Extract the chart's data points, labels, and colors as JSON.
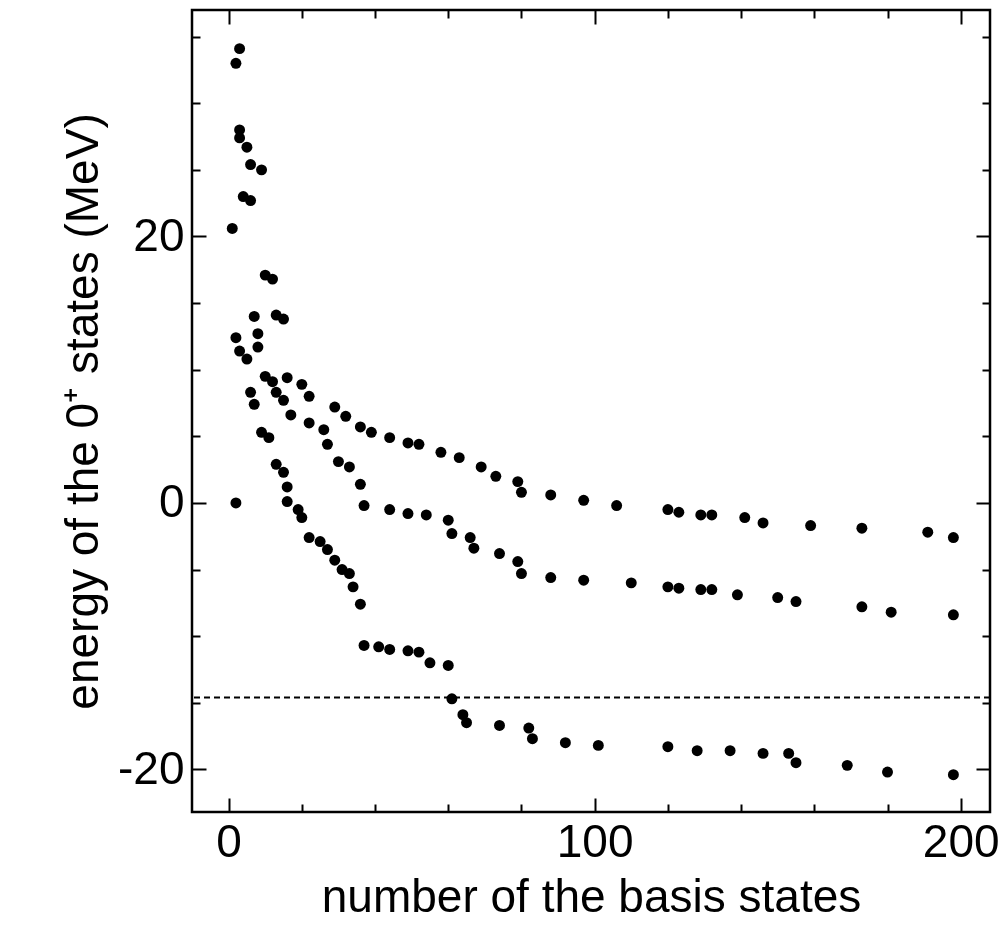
{
  "chart_data": {
    "type": "scatter",
    "xlabel": "number of the basis states",
    "ylabel": "energy of the 0⁺ states (MeV)",
    "marker": "circle",
    "grid": false,
    "xlim": [
      -10,
      208
    ],
    "ylim": [
      -23.2,
      37
    ],
    "xticks": [
      0,
      {
        "value": 20,
        "label": null
      },
      {
        "value": 40,
        "label": null
      },
      {
        "value": 60,
        "label": null
      },
      {
        "value": 80,
        "label": null
      },
      100,
      {
        "value": 120,
        "label": null
      },
      {
        "value": 140,
        "label": null
      },
      {
        "value": 160,
        "label": null
      },
      {
        "value": 180,
        "label": null
      },
      200
    ],
    "yticks": [
      -20,
      {
        "value": -15,
        "label": null
      },
      {
        "value": -10,
        "label": null
      },
      {
        "value": -5,
        "label": null
      },
      0,
      {
        "value": 5,
        "label": null
      },
      {
        "value": 10,
        "label": null
      },
      {
        "value": 15,
        "label": null
      },
      20,
      {
        "value": 25,
        "label": null
      },
      {
        "value": 30,
        "label": null
      },
      {
        "value": 35,
        "label": null
      }
    ],
    "ref_lines": [
      {
        "axis": "y",
        "value": -14.6,
        "line_style": "dashed",
        "color": "#000000"
      }
    ],
    "series": [
      {
        "color": "#000000",
        "x": [
          1,
          2,
          3,
          3,
          3,
          5,
          6,
          9,
          4,
          6,
          10,
          12,
          13,
          15,
          16,
          20,
          22,
          29,
          32,
          36,
          39,
          44,
          49,
          52,
          58,
          63,
          69,
          73,
          79,
          80,
          88,
          97,
          106,
          120,
          123,
          129,
          132,
          141,
          146,
          159,
          173,
          191,
          198
        ],
        "values": [
          20.6,
          33,
          34.1,
          28,
          27.4,
          26.7,
          25.4,
          25,
          23,
          22.7,
          17.1,
          16.8,
          14.1,
          13.8,
          9.4,
          8.9,
          8,
          7.2,
          6.5,
          5.7,
          5.3,
          4.9,
          4.5,
          4.4,
          3.8,
          3.4,
          2.7,
          2,
          1.6,
          0.8,
          0.6,
          0.2,
          -0.2,
          -0.5,
          -0.7,
          -0.9,
          -0.9,
          -1.1,
          -1.5,
          -1.7,
          -1.9,
          -2.2,
          -2.6
        ]
      },
      {
        "color": "#000000",
        "x": [
          2,
          3,
          5,
          7,
          8,
          8,
          10,
          12,
          13,
          15,
          17,
          22,
          26,
          27,
          30,
          33,
          36,
          37,
          44,
          49,
          54,
          60,
          61,
          66,
          67,
          74,
          79,
          80,
          88,
          97,
          110,
          120,
          123,
          129,
          132,
          139,
          150,
          155,
          173,
          181,
          198
        ],
        "values": [
          12.4,
          11.4,
          10.8,
          14,
          12.7,
          11.7,
          9.5,
          9.1,
          8.3,
          7.7,
          6.6,
          6,
          5.5,
          4.4,
          3.1,
          2.7,
          1.4,
          -0.2,
          -0.5,
          -0.8,
          -0.9,
          -1.3,
          -2.3,
          -2.6,
          -3.4,
          -3.8,
          -4.4,
          -5.3,
          -5.6,
          -5.8,
          -6,
          -6.3,
          -6.4,
          -6.5,
          -6.5,
          -6.9,
          -7.1,
          -7.4,
          -7.8,
          -8.2,
          -8.4
        ]
      },
      {
        "color": "#000000",
        "x": [
          2,
          6,
          7,
          9,
          11,
          13,
          15,
          16,
          16,
          19,
          20,
          22,
          25,
          27,
          29,
          31,
          33,
          34,
          36,
          37,
          41,
          44,
          49,
          52,
          55,
          60,
          61,
          64,
          65,
          74,
          82,
          83,
          92,
          101,
          120,
          128,
          137,
          146,
          153,
          155,
          169,
          180,
          198
        ],
        "values": [
          0,
          8.3,
          7.4,
          5.3,
          4.9,
          2.9,
          2.3,
          1.2,
          0.1,
          -0.5,
          -1.1,
          -2.6,
          -2.9,
          -3.5,
          -4.3,
          -5,
          -5.3,
          -6.3,
          -7.6,
          -10.7,
          -10.8,
          -11,
          -11.1,
          -11.2,
          -12,
          -12.2,
          -14.7,
          -15.9,
          -16.5,
          -16.7,
          -16.9,
          -17.7,
          -18,
          -18.2,
          -18.3,
          -18.6,
          -18.6,
          -18.8,
          -18.8,
          -19.5,
          -19.7,
          -20.2,
          -20.4
        ]
      }
    ]
  }
}
